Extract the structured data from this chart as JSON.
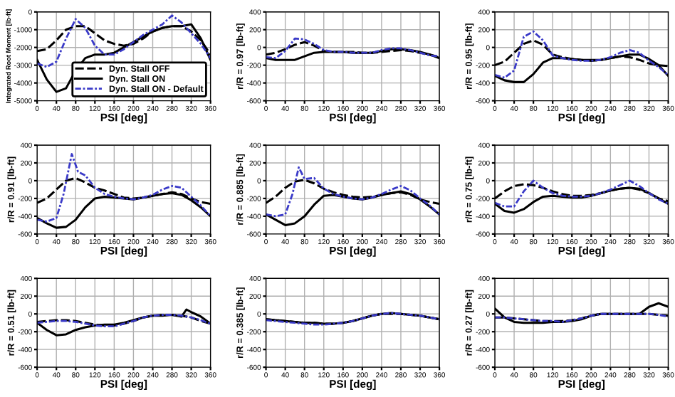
{
  "chart_data": [
    {
      "type": "line",
      "xlabel": "PSI [deg]",
      "ylabel": "Integrated Root Moment [lb-ft]",
      "x": [
        0,
        20,
        40,
        60,
        80,
        100,
        120,
        140,
        160,
        180,
        200,
        220,
        240,
        260,
        280,
        300,
        320,
        340,
        360
      ],
      "xlim": [
        0,
        360
      ],
      "xticks": [
        0,
        40,
        80,
        120,
        160,
        200,
        240,
        280,
        320,
        360
      ],
      "ylim": [
        -5000,
        0
      ],
      "yticks": [
        -5000,
        -4000,
        -3000,
        -2000,
        -1000,
        0
      ],
      "grid": true,
      "legend": "bottom right",
      "series": [
        {
          "name": "Dyn. Stall OFF",
          "color": "#000000",
          "line_style": "dashed",
          "values": [
            -2200,
            -2100,
            -1600,
            -1000,
            -800,
            -800,
            -1200,
            -1600,
            -1800,
            -1900,
            -1800,
            -1500,
            -1100,
            -900,
            -800,
            -800,
            -1100,
            -1600,
            -2400
          ]
        },
        {
          "name": "Dyn. Stall ON",
          "color": "#000000",
          "line_style": "solid",
          "values": [
            -2700,
            -3800,
            -4500,
            -4300,
            -3300,
            -2600,
            -2400,
            -2400,
            -2300,
            -2000,
            -1700,
            -1400,
            -1100,
            -900,
            -800,
            -800,
            -700,
            -1500,
            -2700
          ]
        },
        {
          "name": "Dyn. Stall ON - Default",
          "color": "#3a3ac8",
          "line_style": "dotted",
          "values": [
            -2900,
            -3100,
            -2800,
            -1500,
            -400,
            -900,
            -1900,
            -2400,
            -2400,
            -2100,
            -1700,
            -1300,
            -1000,
            -700,
            -200,
            -600,
            -1200,
            -1800,
            -2600
          ]
        }
      ]
    },
    {
      "type": "line",
      "xlabel": "PSI [deg]",
      "ylabel": "r/R = 0.97 [lb-ft]",
      "x": [
        0,
        20,
        40,
        60,
        80,
        100,
        120,
        140,
        160,
        180,
        200,
        220,
        240,
        260,
        280,
        300,
        320,
        340,
        360
      ],
      "xlim": [
        0,
        360
      ],
      "xticks": [
        0,
        40,
        80,
        120,
        160,
        200,
        240,
        280,
        320,
        360
      ],
      "ylim": [
        -600,
        400
      ],
      "yticks": [
        -600,
        -400,
        -200,
        0,
        200,
        400
      ],
      "grid": true,
      "series": [
        {
          "color": "#000000",
          "line_style": "dashed",
          "values": [
            -80,
            -60,
            -20,
            30,
            60,
            20,
            -40,
            -50,
            -50,
            -50,
            -60,
            -60,
            -50,
            -40,
            -30,
            -40,
            -60,
            -80,
            -110
          ]
        },
        {
          "color": "#000000",
          "line_style": "solid",
          "values": [
            -120,
            -140,
            -140,
            -140,
            -100,
            -60,
            -50,
            -50,
            -50,
            -60,
            -60,
            -60,
            -40,
            -20,
            -20,
            -30,
            -50,
            -80,
            -120
          ]
        },
        {
          "color": "#3a3ac8",
          "line_style": "dotted",
          "values": [
            -110,
            -120,
            -40,
            100,
            90,
            40,
            -30,
            -50,
            -50,
            -60,
            -60,
            -60,
            -30,
            -10,
            -10,
            -30,
            -60,
            -90,
            -100
          ]
        }
      ]
    },
    {
      "type": "line",
      "xlabel": "PSI [deg]",
      "ylabel": "r/R = 0.95 [lb-ft]",
      "x": [
        0,
        20,
        40,
        60,
        80,
        100,
        120,
        140,
        160,
        180,
        200,
        220,
        240,
        260,
        280,
        300,
        320,
        340,
        360
      ],
      "xlim": [
        0,
        360
      ],
      "xticks": [
        0,
        40,
        80,
        120,
        160,
        200,
        240,
        280,
        320,
        360
      ],
      "ylim": [
        -600,
        400
      ],
      "yticks": [
        -600,
        -400,
        -200,
        0,
        200,
        400
      ],
      "grid": true,
      "series": [
        {
          "color": "#000000",
          "line_style": "dashed",
          "values": [
            -200,
            -160,
            -60,
            40,
            80,
            30,
            -80,
            -110,
            -130,
            -140,
            -150,
            -140,
            -120,
            -100,
            -110,
            -140,
            -180,
            -200,
            -210
          ]
        },
        {
          "color": "#000000",
          "line_style": "solid",
          "values": [
            -320,
            -370,
            -390,
            -390,
            -300,
            -170,
            -120,
            -120,
            -130,
            -140,
            -140,
            -140,
            -120,
            -100,
            -80,
            -80,
            -130,
            -200,
            -320
          ]
        },
        {
          "color": "#3a3ac8",
          "line_style": "dotted",
          "values": [
            -310,
            -340,
            -260,
            120,
            180,
            80,
            -90,
            -120,
            -140,
            -150,
            -150,
            -140,
            -110,
            -60,
            -30,
            -60,
            -150,
            -220,
            -310
          ]
        }
      ]
    },
    {
      "type": "line",
      "xlabel": "PSI [deg]",
      "ylabel": "r/R = 0.91 [lb-ft]",
      "x": [
        0,
        20,
        40,
        60,
        80,
        100,
        120,
        140,
        160,
        180,
        200,
        220,
        240,
        260,
        280,
        300,
        320,
        340,
        360
      ],
      "xlim": [
        0,
        360
      ],
      "xticks": [
        0,
        40,
        80,
        120,
        160,
        200,
        240,
        280,
        320,
        360
      ],
      "ylim": [
        -600,
        400
      ],
      "yticks": [
        -600,
        -400,
        -200,
        0,
        200,
        400
      ],
      "grid": true,
      "series": [
        {
          "color": "#000000",
          "line_style": "dashed",
          "values": [
            -250,
            -200,
            -100,
            0,
            30,
            -20,
            -80,
            -110,
            -150,
            -190,
            -200,
            -190,
            -170,
            -150,
            -130,
            -150,
            -200,
            -240,
            -260
          ]
        },
        {
          "color": "#000000",
          "line_style": "solid",
          "values": [
            -420,
            -480,
            -530,
            -520,
            -440,
            -300,
            -200,
            -180,
            -190,
            -200,
            -210,
            -190,
            -170,
            -150,
            -140,
            -160,
            -220,
            -300,
            -400
          ]
        },
        {
          "color": "#3a3ac8",
          "line_style": "dotted",
          "x": [
            0,
            20,
            40,
            55,
            72,
            85,
            100,
            120,
            140,
            160,
            180,
            200,
            220,
            240,
            260,
            280,
            300,
            320,
            340,
            360
          ],
          "values": [
            -440,
            -460,
            -420,
            -150,
            300,
            100,
            60,
            -80,
            -150,
            -180,
            -200,
            -210,
            -190,
            -160,
            -100,
            -60,
            -80,
            -180,
            -280,
            -400
          ]
        }
      ]
    },
    {
      "type": "line",
      "xlabel": "PSI [deg]",
      "ylabel": "r/R = 0.885 [lb-ft]",
      "x": [
        0,
        20,
        40,
        60,
        80,
        100,
        120,
        140,
        160,
        180,
        200,
        220,
        240,
        260,
        280,
        300,
        320,
        340,
        360
      ],
      "xlim": [
        0,
        360
      ],
      "xticks": [
        0,
        40,
        80,
        120,
        160,
        200,
        240,
        280,
        320,
        360
      ],
      "ylim": [
        -600,
        400
      ],
      "yticks": [
        -600,
        -400,
        -200,
        0,
        200,
        400
      ],
      "grid": true,
      "series": [
        {
          "color": "#000000",
          "line_style": "dashed",
          "values": [
            -250,
            -180,
            -80,
            -10,
            10,
            -30,
            -90,
            -130,
            -160,
            -180,
            -190,
            -180,
            -160,
            -140,
            -130,
            -160,
            -210,
            -240,
            -260
          ]
        },
        {
          "color": "#000000",
          "line_style": "solid",
          "values": [
            -380,
            -440,
            -500,
            -480,
            -400,
            -270,
            -170,
            -160,
            -180,
            -200,
            -210,
            -190,
            -160,
            -140,
            -120,
            -150,
            -210,
            -290,
            -380
          ]
        },
        {
          "color": "#3a3ac8",
          "line_style": "dotted",
          "x": [
            0,
            20,
            40,
            55,
            68,
            80,
            100,
            120,
            140,
            160,
            180,
            200,
            220,
            240,
            260,
            280,
            300,
            320,
            340,
            360
          ],
          "values": [
            -380,
            -400,
            -380,
            -150,
            150,
            20,
            30,
            -90,
            -150,
            -180,
            -200,
            -210,
            -190,
            -150,
            -100,
            -60,
            -110,
            -200,
            -280,
            -380
          ]
        }
      ]
    },
    {
      "type": "line",
      "xlabel": "PSI [deg]",
      "ylabel": "r/R = 0.75 [lb-ft]",
      "x": [
        0,
        20,
        40,
        60,
        80,
        100,
        120,
        140,
        160,
        180,
        200,
        220,
        240,
        260,
        280,
        300,
        320,
        340,
        360
      ],
      "xlim": [
        0,
        360
      ],
      "xticks": [
        0,
        40,
        80,
        120,
        160,
        200,
        240,
        280,
        320,
        360
      ],
      "ylim": [
        -600,
        400
      ],
      "yticks": [
        -600,
        -400,
        -200,
        0,
        200,
        400
      ],
      "grid": true,
      "series": [
        {
          "color": "#000000",
          "line_style": "dashed",
          "values": [
            -200,
            -120,
            -60,
            -40,
            -50,
            -80,
            -120,
            -150,
            -170,
            -170,
            -160,
            -140,
            -110,
            -90,
            -80,
            -100,
            -140,
            -200,
            -230
          ]
        },
        {
          "color": "#000000",
          "line_style": "solid",
          "values": [
            -260,
            -340,
            -360,
            -320,
            -240,
            -180,
            -170,
            -180,
            -190,
            -190,
            -170,
            -140,
            -110,
            -90,
            -80,
            -90,
            -140,
            -200,
            -260
          ]
        },
        {
          "color": "#3a3ac8",
          "line_style": "dotted",
          "values": [
            -250,
            -290,
            -290,
            -120,
            0,
            -80,
            -140,
            -170,
            -180,
            -180,
            -170,
            -140,
            -100,
            -50,
            0,
            -60,
            -140,
            -210,
            -260
          ]
        }
      ]
    },
    {
      "type": "line",
      "xlabel": "PSI [deg]",
      "ylabel": "r/R = 0.51 [lb-ft]",
      "x": [
        0,
        20,
        40,
        60,
        80,
        100,
        120,
        140,
        160,
        180,
        200,
        220,
        240,
        260,
        280,
        300,
        320,
        340,
        360
      ],
      "xlim": [
        0,
        360
      ],
      "xticks": [
        0,
        40,
        80,
        120,
        160,
        200,
        240,
        280,
        320,
        360
      ],
      "ylim": [
        -600,
        400
      ],
      "yticks": [
        -600,
        -400,
        -200,
        0,
        200,
        400
      ],
      "grid": true,
      "series": [
        {
          "color": "#000000",
          "line_style": "dashed",
          "values": [
            -90,
            -80,
            -70,
            -70,
            -80,
            -100,
            -120,
            -130,
            -130,
            -110,
            -80,
            -40,
            -20,
            -10,
            -10,
            -20,
            -40,
            -80,
            -110
          ]
        },
        {
          "color": "#000000",
          "line_style": "solid",
          "x": [
            0,
            20,
            40,
            60,
            80,
            100,
            120,
            140,
            160,
            180,
            200,
            220,
            240,
            260,
            280,
            300,
            310,
            320,
            340,
            360
          ],
          "values": [
            -100,
            -180,
            -240,
            -230,
            -180,
            -150,
            -130,
            -120,
            -120,
            -100,
            -70,
            -40,
            -20,
            -20,
            -10,
            -30,
            50,
            20,
            -30,
            -110
          ]
        },
        {
          "color": "#3a3ac8",
          "line_style": "dotted",
          "values": [
            -100,
            -90,
            -80,
            -80,
            -90,
            -110,
            -130,
            -140,
            -140,
            -110,
            -80,
            -40,
            -20,
            -10,
            -10,
            -20,
            -40,
            -70,
            -110
          ]
        }
      ]
    },
    {
      "type": "line",
      "xlabel": "PSI [deg]",
      "ylabel": "r/R = 0.385 [lb-ft]",
      "x": [
        0,
        20,
        40,
        60,
        80,
        100,
        120,
        140,
        160,
        180,
        200,
        220,
        240,
        260,
        280,
        300,
        320,
        340,
        360
      ],
      "xlim": [
        0,
        360
      ],
      "xticks": [
        0,
        40,
        80,
        120,
        160,
        200,
        240,
        280,
        320,
        360
      ],
      "ylim": [
        -600,
        400
      ],
      "yticks": [
        -600,
        -400,
        -200,
        0,
        200,
        400
      ],
      "grid": true,
      "series": [
        {
          "color": "#000000",
          "line_style": "dashed",
          "values": [
            -60,
            -70,
            -80,
            -90,
            -100,
            -100,
            -110,
            -110,
            -100,
            -80,
            -50,
            -20,
            0,
            0,
            0,
            -10,
            -20,
            -40,
            -60
          ]
        },
        {
          "color": "#000000",
          "line_style": "solid",
          "values": [
            -60,
            -70,
            -80,
            -90,
            -100,
            -100,
            -110,
            -110,
            -100,
            -80,
            -50,
            -20,
            0,
            10,
            0,
            -10,
            -20,
            -40,
            -60
          ]
        },
        {
          "color": "#3a3ac8",
          "line_style": "dotted",
          "values": [
            -70,
            -80,
            -90,
            -100,
            -110,
            -120,
            -120,
            -110,
            -100,
            -80,
            -50,
            -20,
            0,
            10,
            0,
            -10,
            -20,
            -40,
            -60
          ]
        }
      ]
    },
    {
      "type": "line",
      "xlabel": "PSI [deg]",
      "ylabel": "r/R = 0.27 [lb-ft]",
      "x": [
        0,
        20,
        40,
        60,
        80,
        100,
        120,
        140,
        160,
        180,
        200,
        220,
        240,
        260,
        280,
        300,
        320,
        340,
        360
      ],
      "xlim": [
        0,
        360
      ],
      "xticks": [
        0,
        40,
        80,
        120,
        160,
        200,
        240,
        280,
        320,
        360
      ],
      "ylim": [
        -600,
        400
      ],
      "yticks": [
        -600,
        -400,
        -200,
        0,
        200,
        400
      ],
      "grid": true,
      "series": [
        {
          "color": "#000000",
          "line_style": "dashed",
          "values": [
            -40,
            -40,
            -50,
            -60,
            -70,
            -80,
            -80,
            -80,
            -70,
            -50,
            -20,
            0,
            0,
            0,
            0,
            0,
            0,
            -10,
            -20
          ]
        },
        {
          "color": "#000000",
          "line_style": "solid",
          "values": [
            60,
            -40,
            -90,
            -100,
            -100,
            -100,
            -90,
            -90,
            -80,
            -60,
            -20,
            0,
            0,
            0,
            0,
            0,
            80,
            120,
            80
          ]
        },
        {
          "color": "#3a3ac8",
          "line_style": "dotted",
          "values": [
            -40,
            -40,
            -50,
            -60,
            -70,
            -80,
            -80,
            -90,
            -70,
            -50,
            -20,
            0,
            0,
            0,
            0,
            0,
            0,
            -10,
            -30
          ]
        }
      ]
    }
  ]
}
